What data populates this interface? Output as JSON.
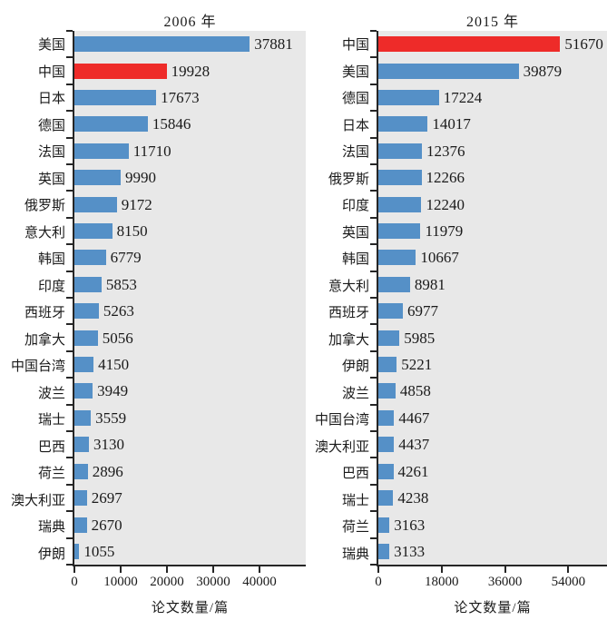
{
  "colors": {
    "bar": "#5590c7",
    "highlight": "#ee2b29",
    "plot_bg": "#e8e8e8",
    "axis": "#262626",
    "text": "#1a1a1a"
  },
  "chart_data": [
    {
      "type": "bar",
      "orientation": "horizontal",
      "title": "2006 年",
      "xlabel": "论文数量/篇",
      "highlight_category": "中国",
      "xlim": [
        0,
        50000
      ],
      "xticks": [
        0,
        10000,
        20000,
        30000,
        40000
      ],
      "categories": [
        "美国",
        "中国",
        "日本",
        "德国",
        "法国",
        "英国",
        "俄罗斯",
        "意大利",
        "韩国",
        "印度",
        "西班牙",
        "加拿大",
        "中国台湾",
        "波兰",
        "瑞士",
        "巴西",
        "荷兰",
        "澳大利亚",
        "瑞典",
        "伊朗"
      ],
      "values": [
        37881,
        19928,
        17673,
        15846,
        11710,
        9990,
        9172,
        8150,
        6779,
        5853,
        5263,
        5056,
        4150,
        3949,
        3559,
        3130,
        2896,
        2697,
        2670,
        1055
      ]
    },
    {
      "type": "bar",
      "orientation": "horizontal",
      "title": "2015 年",
      "xlabel": "论文数量/篇",
      "highlight_category": "中国",
      "xlim": [
        0,
        65000
      ],
      "xticks": [
        0,
        18000,
        36000,
        54000
      ],
      "categories": [
        "中国",
        "美国",
        "德国",
        "日本",
        "法国",
        "俄罗斯",
        "印度",
        "英国",
        "韩国",
        "意大利",
        "西班牙",
        "加拿大",
        "伊朗",
        "波兰",
        "中国台湾",
        "澳大利亚",
        "巴西",
        "瑞士",
        "荷兰",
        "瑞典"
      ],
      "values": [
        51670,
        39879,
        17224,
        14017,
        12376,
        12266,
        12240,
        11979,
        10667,
        8981,
        6977,
        5985,
        5221,
        4858,
        4467,
        4437,
        4261,
        4238,
        3163,
        3133
      ]
    }
  ]
}
